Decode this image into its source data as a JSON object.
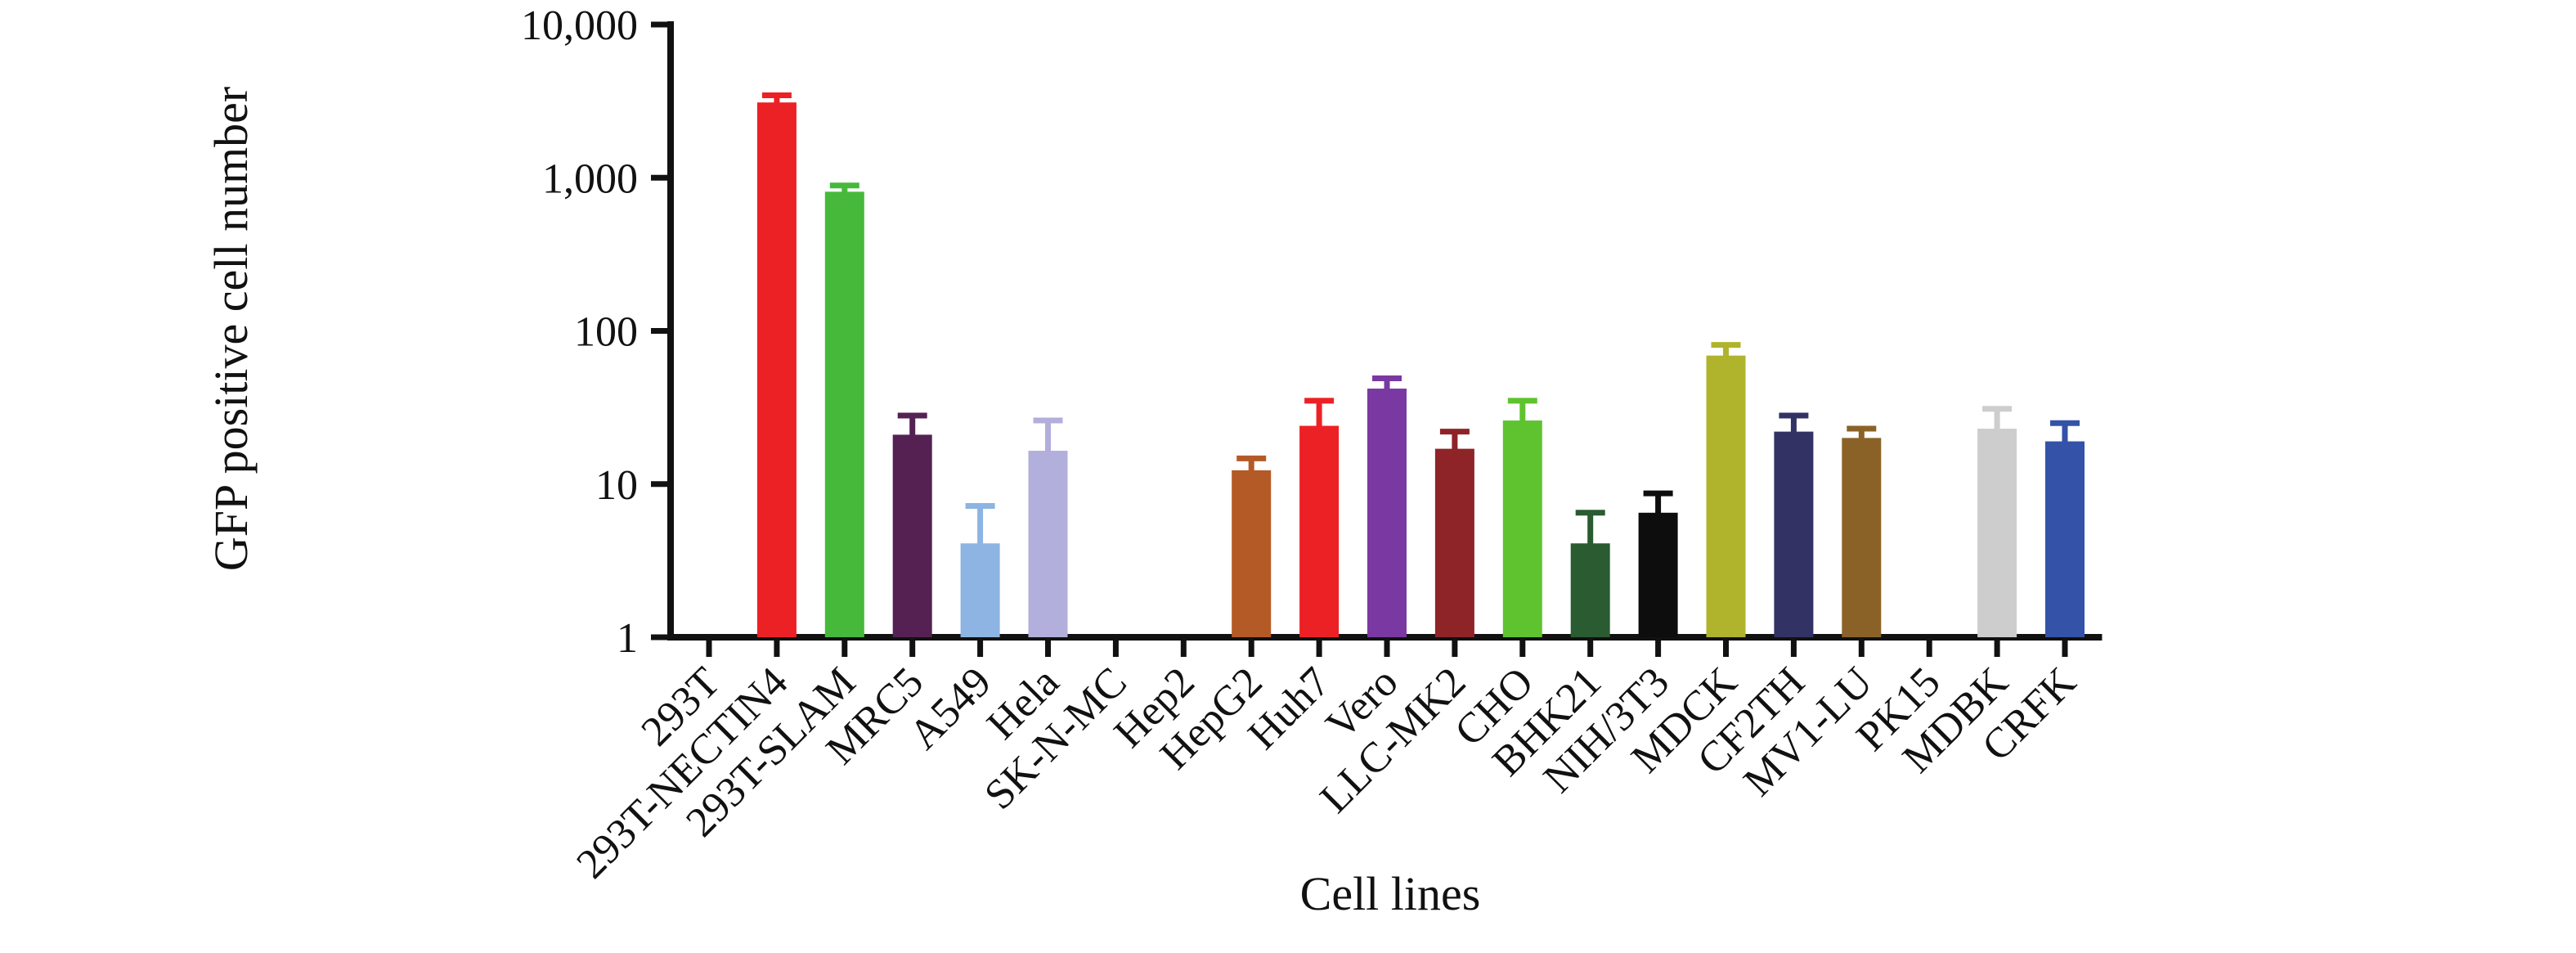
{
  "figure": {
    "background_color": "#ffffff",
    "axis_color": "#111111",
    "error_bar_style": "upper only, same color as bar"
  },
  "chart_data": {
    "type": "bar",
    "title": "",
    "xlabel": "Cell lines",
    "ylabel": "GFP positive cell number",
    "y_scale": "log10",
    "ylim": [
      1,
      10000
    ],
    "grid": false,
    "legend": false,
    "y_ticks": [
      {
        "v": 10000,
        "label": "10,000"
      },
      {
        "v": 1000,
        "label": "1,000"
      },
      {
        "v": 100,
        "label": "100"
      },
      {
        "v": 10,
        "label": "10"
      },
      {
        "v": 1,
        "label": "1"
      }
    ],
    "categories": [
      "293T",
      "293T-NECTIN4",
      "293T-SLAM",
      "MRC5",
      "A549",
      "Hela",
      "SK-N-MC",
      "Hep2",
      "HepG2",
      "Huh7",
      "Vero",
      "LLC-MK2",
      "CHO",
      "BHK21",
      "NIH/3T3",
      "MDCK",
      "CF2TH",
      "MV1-LU",
      "PK15",
      "MDBK",
      "CRFK"
    ],
    "values": [
      0,
      3100,
      810,
      21,
      4.1,
      16.5,
      0,
      0,
      12.3,
      24,
      42,
      17,
      26,
      4.1,
      6.5,
      69,
      22,
      20,
      0,
      23,
      19
    ],
    "error_upper_cap": [
      0,
      3450,
      890,
      28,
      7.2,
      26,
      0,
      0,
      14.7,
      35,
      49,
      22,
      35,
      6.5,
      8.7,
      81,
      28,
      23,
      0,
      31,
      25
    ],
    "bar_colors": [
      null,
      "#EC2125",
      "#46B93B",
      "#542152",
      "#8DB4E2",
      "#B2AFDC",
      null,
      null,
      "#B45A26",
      "#EC2125",
      "#7A39A2",
      "#8E2428",
      "#5EC32F",
      "#2A5B31",
      "#0D0D0D",
      "#AFB42C",
      "#333264",
      "#8A6228",
      null,
      "#CDCDCD",
      "#3352A8"
    ]
  }
}
